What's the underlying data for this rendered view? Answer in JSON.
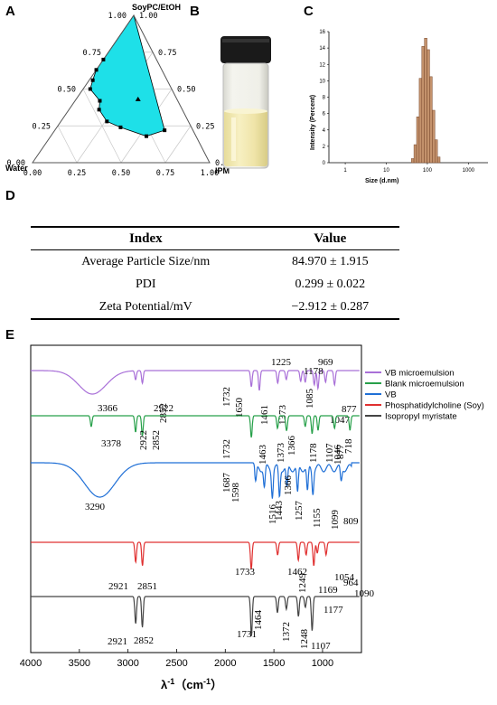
{
  "panel_labels": {
    "a": "A",
    "b": "B",
    "c": "C",
    "d": "D",
    "e": "E"
  },
  "ternary": {
    "top_vertex": "SoyPC/EtOH",
    "left_vertex": "Water",
    "right_vertex": "IPM",
    "left_edge_ticks": [
      "0.00",
      "0.25",
      "0.50",
      "0.75",
      "1.00"
    ],
    "right_edge_ticks": [
      "1.00",
      "0.75",
      "0.50",
      "0.25",
      "0.00"
    ],
    "bottom_edge_ticks": [
      "0.00",
      "0.25",
      "0.50",
      "0.75",
      "1.00"
    ],
    "region_color": "#1EE0E8",
    "boundary_points": [
      {
        "water": 0.0,
        "surf": 1.0,
        "ipm": 0.0
      },
      {
        "water": 0.3,
        "surf": 0.7,
        "ipm": 0.0
      },
      {
        "water": 0.37,
        "surf": 0.63,
        "ipm": 0.0
      },
      {
        "water": 0.42,
        "surf": 0.56,
        "ipm": 0.02
      },
      {
        "water": 0.46,
        "surf": 0.5,
        "ipm": 0.04
      },
      {
        "water": 0.44,
        "surf": 0.42,
        "ipm": 0.14
      },
      {
        "water": 0.47,
        "surf": 0.36,
        "ipm": 0.17
      },
      {
        "water": 0.46,
        "surf": 0.28,
        "ipm": 0.26
      },
      {
        "water": 0.4,
        "surf": 0.24,
        "ipm": 0.36
      },
      {
        "water": 0.28,
        "surf": 0.18,
        "ipm": 0.54
      },
      {
        "water": 0.16,
        "surf": 0.22,
        "ipm": 0.62
      }
    ],
    "inner_marker": {
      "water": 0.22,
      "surf": 0.43,
      "ipm": 0.35
    }
  },
  "size_distribution": {
    "type": "bar",
    "xlabel": "Size (d.nm)",
    "ylabel": "Intensity (Percent)",
    "x_ticks": [
      "1",
      "10",
      "100",
      "1000"
    ],
    "y_ticks": [
      "0",
      "2",
      "4",
      "6",
      "8",
      "10",
      "12",
      "14",
      "16"
    ],
    "ylim": [
      0,
      16
    ],
    "xlim_log": [
      0.4,
      3000
    ],
    "bar_color": "#C4926C",
    "bins": [
      {
        "size": 43.8,
        "intensity": 0.5
      },
      {
        "size": 50.7,
        "intensity": 2.2
      },
      {
        "size": 58.8,
        "intensity": 5.6
      },
      {
        "size": 68.1,
        "intensity": 10.3
      },
      {
        "size": 78.8,
        "intensity": 14.2
      },
      {
        "size": 91.3,
        "intensity": 15.2
      },
      {
        "size": 105.7,
        "intensity": 13.8
      },
      {
        "size": 122.4,
        "intensity": 10.5
      },
      {
        "size": 141.8,
        "intensity": 6.4
      },
      {
        "size": 164.2,
        "intensity": 2.8
      },
      {
        "size": 190.1,
        "intensity": 0.7
      }
    ]
  },
  "table": {
    "headers": [
      "Index",
      "Value"
    ],
    "rows": [
      [
        "Average Particle Size/nm",
        "84.970 ± 1.915"
      ],
      [
        "PDI",
        "0.299 ± 0.022"
      ],
      [
        "Zeta Potential/mV",
        "−2.912 ± 0.287"
      ]
    ]
  },
  "chart_data": {
    "type": "line",
    "xlabel": "λ-1（cm-1）",
    "xlabel_main": "λ",
    "xlabel_sup": "-1",
    "xlabel_unit_open": "（cm",
    "xlabel_unit_sup": "-1",
    "xlabel_unit_close": "）",
    "xlim": [
      4000,
      600
    ],
    "x_ticks": [
      "4000",
      "3500",
      "3000",
      "2500",
      "2000",
      "1500",
      "1000"
    ],
    "legend": [
      {
        "name": "VB microemulsion",
        "color": "#A970D8"
      },
      {
        "name": "Blank microemulsion",
        "color": "#27A04A"
      },
      {
        "name": "VB",
        "color": "#1F6FD6"
      },
      {
        "name": "Phosphatidylcholine (Soy)",
        "color": "#E03030"
      },
      {
        "name": "Isopropyl myristate",
        "color": "#444444"
      }
    ],
    "series": [
      {
        "name": "VB microemulsion",
        "color": "#A970D8",
        "peaks": [
          {
            "x": 3366,
            "d": 26
          },
          {
            "x": 2922,
            "d": 10
          },
          {
            "x": 2852,
            "d": 14
          },
          {
            "x": 1732,
            "d": 18
          },
          {
            "x": 1650,
            "d": 22
          },
          {
            "x": 1461,
            "d": 14
          },
          {
            "x": 1373,
            "d": 10
          },
          {
            "x": 1225,
            "d": 12
          },
          {
            "x": 1178,
            "d": 13
          },
          {
            "x": 1085,
            "d": 16
          },
          {
            "x": 1047,
            "d": 20
          },
          {
            "x": 969,
            "d": 13
          },
          {
            "x": 877,
            "d": 16
          }
        ],
        "labels": [
          "3366",
          "2922",
          "2852",
          "1732",
          "1650",
          "1461",
          "1373",
          "1225",
          "1178",
          "1085",
          "1047",
          "969",
          "877"
        ]
      },
      {
        "name": "Blank microemulsion",
        "color": "#27A04A",
        "peaks": [
          {
            "x": 3378,
            "d": 12
          },
          {
            "x": 2922,
            "d": 18
          },
          {
            "x": 2852,
            "d": 22
          },
          {
            "x": 1732,
            "d": 24
          },
          {
            "x": 1463,
            "d": 14
          },
          {
            "x": 1373,
            "d": 10
          },
          {
            "x": 1366,
            "d": 8
          },
          {
            "x": 1178,
            "d": 12
          },
          {
            "x": 1107,
            "d": 20
          },
          {
            "x": 1046,
            "d": 16
          },
          {
            "x": 877,
            "d": 14
          },
          {
            "x": 718,
            "d": 16
          }
        ],
        "labels": [
          "3378",
          "2922",
          "2852",
          "1732",
          "1463",
          "1373",
          "1366",
          "1178",
          "1107",
          "1046",
          "877",
          "718"
        ]
      },
      {
        "name": "VB",
        "color": "#1F6FD6",
        "peaks": [
          {
            "x": 3290,
            "d": 38
          },
          {
            "x": 1687,
            "d": 18
          },
          {
            "x": 1598,
            "d": 22
          },
          {
            "x": 1516,
            "d": 30
          },
          {
            "x": 1443,
            "d": 32
          },
          {
            "x": 1366,
            "d": 24
          },
          {
            "x": 1257,
            "d": 30
          },
          {
            "x": 1155,
            "d": 28
          },
          {
            "x": 1099,
            "d": 26
          },
          {
            "x": 809,
            "d": 16
          }
        ],
        "labels": [
          "3290",
          "1687",
          "1598",
          "1516",
          "1443",
          "1366",
          "1257",
          "1155",
          "1099",
          "809"
        ]
      },
      {
        "name": "Phosphatidylcholine (Soy)",
        "color": "#E03030",
        "peaks": [
          {
            "x": 2921,
            "d": 22
          },
          {
            "x": 2851,
            "d": 26
          },
          {
            "x": 1733,
            "d": 30
          },
          {
            "x": 1462,
            "d": 14
          },
          {
            "x": 1249,
            "d": 20
          },
          {
            "x": 1169,
            "d": 14
          },
          {
            "x": 1090,
            "d": 26
          },
          {
            "x": 1054,
            "d": 12
          },
          {
            "x": 964,
            "d": 14
          }
        ],
        "labels": [
          "2921",
          "2851",
          "1733",
          "1462",
          "1249",
          "1169",
          "1090",
          "1054",
          "964"
        ]
      },
      {
        "name": "Isopropyl myristate",
        "color": "#444444",
        "peaks": [
          {
            "x": 2921,
            "d": 30
          },
          {
            "x": 2852,
            "d": 34
          },
          {
            "x": 1731,
            "d": 44
          },
          {
            "x": 1464,
            "d": 18
          },
          {
            "x": 1372,
            "d": 14
          },
          {
            "x": 1248,
            "d": 22
          },
          {
            "x": 1177,
            "d": 12
          },
          {
            "x": 1107,
            "d": 38
          }
        ],
        "labels": [
          "2921",
          "2852",
          "1731",
          "1464",
          "1372",
          "1248",
          "1177",
          "1107"
        ]
      }
    ]
  }
}
